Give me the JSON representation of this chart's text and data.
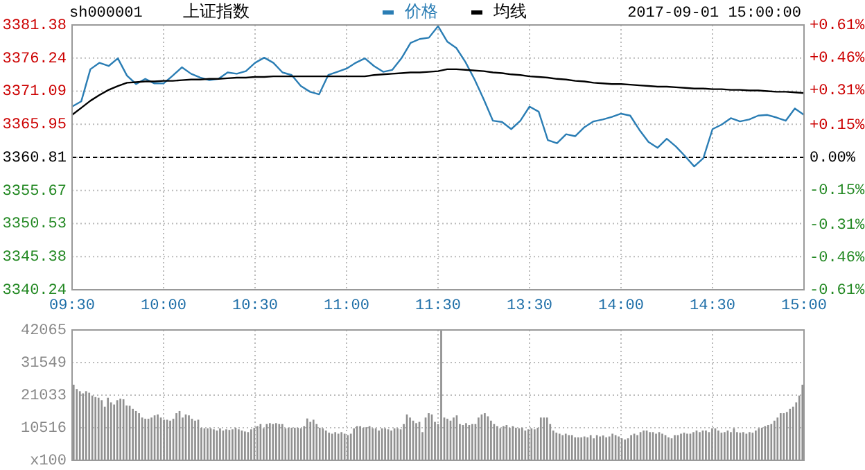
{
  "chart_data": [
    {
      "type": "line",
      "title": "上证指数",
      "subtitle": "sh000001",
      "annotations": [
        "2017-09-01 15:00:00"
      ],
      "legend": "top",
      "grid": true,
      "categories": [
        "09:30",
        null,
        null,
        null,
        null,
        null,
        null,
        null,
        null,
        null,
        "10:00",
        null,
        null,
        null,
        null,
        null,
        null,
        null,
        null,
        null,
        "10:30",
        null,
        null,
        null,
        null,
        null,
        null,
        null,
        null,
        null,
        "11:00",
        null,
        null,
        null,
        null,
        null,
        null,
        null,
        null,
        null,
        "11:30",
        null,
        null,
        null,
        null,
        null,
        null,
        null,
        null,
        null,
        "13:30",
        null,
        null,
        null,
        null,
        null,
        null,
        null,
        null,
        null,
        "14:00",
        null,
        null,
        null,
        null,
        null,
        null,
        null,
        null,
        null,
        "14:30",
        null,
        null,
        null,
        null,
        null,
        null,
        null,
        null,
        null,
        "15:00"
      ],
      "ylim": [
        3340.24,
        3381.38
      ],
      "yticks": [
        3340.24,
        3345.38,
        3350.53,
        3355.67,
        3360.81,
        3365.95,
        3371.09,
        3376.24,
        3381.38
      ],
      "y2lim": [
        -0.61,
        0.61
      ],
      "y2ticks": [
        {
          "value": -0.61,
          "label": "-0.61%"
        },
        {
          "value": -0.46,
          "label": "-0.46%"
        },
        {
          "value": -0.31,
          "label": "-0.31%"
        },
        {
          "value": -0.15,
          "label": "-0.15%"
        },
        {
          "value": 0,
          "label": "0.00%"
        },
        {
          "value": 0.15,
          "label": "+0.15%"
        },
        {
          "value": 0.31,
          "label": "+0.31%"
        },
        {
          "value": 0.46,
          "label": "+0.46%"
        },
        {
          "value": 0.61,
          "label": "+0.61%"
        }
      ],
      "ref_lines": [
        {
          "axis": "y",
          "value": 3360.81,
          "color": "#000000",
          "line_style": "dashed"
        }
      ],
      "series": [
        {
          "name": "价格",
          "color": "#2a7db4",
          "values": [
            3368.7,
            3369.5,
            3374.5,
            3375.5,
            3375.0,
            3376.2,
            3373.5,
            3372.2,
            3373.0,
            3372.3,
            3372.3,
            3373.5,
            3374.8,
            3373.8,
            3373.2,
            3372.8,
            3373.0,
            3374.0,
            3373.8,
            3374.2,
            3375.5,
            3376.3,
            3375.5,
            3374.0,
            3373.6,
            3371.9,
            3371.0,
            3370.6,
            3373.6,
            3374.1,
            3374.6,
            3375.5,
            3376.2,
            3375.0,
            3374.1,
            3374.4,
            3376.2,
            3378.6,
            3379.2,
            3379.4,
            3381.2,
            3378.8,
            3377.8,
            3375.6,
            3372.9,
            3369.8,
            3366.5,
            3366.3,
            3365.2,
            3366.5,
            3368.7,
            3367.9,
            3363.5,
            3363.0,
            3364.4,
            3364.1,
            3365.5,
            3366.4,
            3366.7,
            3367.1,
            3367.6,
            3367.3,
            3365.1,
            3363.2,
            3362.3,
            3363.7,
            3362.5,
            3361.0,
            3359.4,
            3360.7,
            3365.2,
            3365.9,
            3366.9,
            3366.4,
            3366.7,
            3367.3,
            3367.4,
            3367.0,
            3366.5,
            3368.4,
            3367.4
          ]
        },
        {
          "name": "均线",
          "color": "#000000",
          "values": [
            3367.4,
            3368.5,
            3369.6,
            3370.5,
            3371.3,
            3371.9,
            3372.4,
            3372.5,
            3372.6,
            3372.6,
            3372.7,
            3372.7,
            3372.8,
            3372.9,
            3372.9,
            3373.0,
            3373.0,
            3373.1,
            3373.2,
            3373.2,
            3373.3,
            3373.3,
            3373.4,
            3373.4,
            3373.4,
            3373.4,
            3373.4,
            3373.4,
            3373.4,
            3373.4,
            3373.4,
            3373.4,
            3373.4,
            3373.6,
            3373.7,
            3373.8,
            3373.9,
            3374.0,
            3374.0,
            3374.1,
            3374.2,
            3374.5,
            3374.5,
            3374.4,
            3374.3,
            3374.2,
            3374.0,
            3373.9,
            3373.7,
            3373.6,
            3373.4,
            3373.3,
            3373.2,
            3373.0,
            3372.9,
            3372.7,
            3372.6,
            3372.4,
            3372.3,
            3372.2,
            3372.2,
            3372.1,
            3372.0,
            3371.9,
            3371.8,
            3371.8,
            3371.7,
            3371.6,
            3371.5,
            3371.5,
            3371.4,
            3371.4,
            3371.3,
            3371.3,
            3371.2,
            3371.2,
            3371.1,
            3371.0,
            3371.0,
            3370.9,
            3370.8
          ]
        }
      ]
    },
    {
      "type": "bar",
      "grid": true,
      "color": "#909090",
      "ylim": [
        0,
        42065
      ],
      "yticks": [
        {
          "value": 0,
          "label": "x100"
        },
        10516,
        21033,
        31549,
        42065
      ],
      "categories": [
        null,
        null,
        null,
        null,
        null,
        null,
        null,
        null,
        null,
        null,
        null,
        null,
        null,
        null,
        null,
        null,
        null,
        null,
        null,
        null,
        null,
        null,
        null,
        null,
        null,
        null,
        null,
        null,
        null,
        null,
        null,
        null,
        null,
        null,
        null,
        null,
        null,
        null,
        null,
        null,
        null,
        null,
        null,
        null,
        null,
        null,
        null,
        null,
        null,
        null,
        null,
        null,
        null,
        null,
        null,
        null,
        null,
        null,
        null,
        null,
        null,
        null,
        null,
        null,
        null,
        null,
        null,
        null,
        null,
        null,
        null,
        null,
        null,
        null,
        null,
        null,
        null,
        null,
        null,
        null,
        null,
        null,
        null,
        null,
        null,
        null,
        null,
        null,
        null,
        null,
        null,
        null,
        null,
        null,
        null,
        null,
        null,
        null,
        null,
        null,
        null,
        null,
        null,
        null,
        null,
        null,
        null,
        null,
        null,
        null,
        null,
        null,
        null,
        null,
        null,
        null,
        null,
        null,
        null,
        null,
        null,
        null,
        null,
        null,
        null,
        null,
        null,
        null,
        null,
        null,
        null,
        null,
        null,
        null,
        null,
        null,
        null,
        null,
        null,
        null,
        null,
        null,
        null,
        null,
        null,
        null,
        null,
        null,
        null,
        null,
        null,
        null,
        null,
        null,
        null,
        null,
        null,
        null,
        null,
        null,
        null,
        null,
        null,
        null,
        null,
        null,
        null,
        null,
        null,
        null,
        null,
        null,
        null,
        null,
        null,
        null,
        null,
        null,
        null,
        null,
        null,
        null,
        null,
        null,
        null,
        null,
        null,
        null,
        null,
        null,
        null,
        null,
        null,
        null,
        null,
        null,
        null,
        null,
        null,
        null,
        null,
        null,
        null,
        null,
        null,
        null,
        null,
        null,
        null,
        null,
        null,
        null,
        null,
        null,
        null,
        null,
        null,
        null,
        null,
        null,
        null,
        null,
        null,
        null,
        null,
        null,
        null,
        null,
        null,
        null,
        null,
        null,
        null,
        null,
        null
      ],
      "values": [
        24400,
        23000,
        22300,
        21600,
        22300,
        21800,
        20900,
        20400,
        20200,
        19400,
        17300,
        20200,
        18700,
        18000,
        19400,
        19900,
        19700,
        17700,
        17600,
        16600,
        15900,
        15200,
        13800,
        13400,
        13400,
        13800,
        14500,
        14800,
        13800,
        13100,
        13100,
        12800,
        13400,
        15200,
        15900,
        13800,
        14800,
        14500,
        13400,
        12800,
        13100,
        10500,
        10300,
        10300,
        10300,
        10000,
        9600,
        10300,
        9600,
        10000,
        9800,
        10000,
        10500,
        10000,
        9600,
        9300,
        9100,
        10000,
        10500,
        11000,
        11700,
        10300,
        11700,
        12000,
        11700,
        12000,
        11700,
        11700,
        10300,
        10500,
        10500,
        10500,
        10500,
        10300,
        11000,
        13500,
        12400,
        13100,
        11700,
        10500,
        10300,
        9600,
        8900,
        8600,
        9100,
        8600,
        9100,
        8600,
        8100,
        8600,
        10300,
        11000,
        11000,
        10500,
        10700,
        11000,
        10300,
        10300,
        9600,
        10300,
        10300,
        10000,
        9600,
        10300,
        10300,
        10000,
        11700,
        14800,
        13800,
        12800,
        12000,
        12400,
        9100,
        13800,
        15200,
        14800,
        12400,
        11700,
        42000,
        13800,
        13400,
        12800,
        13800,
        14500,
        11700,
        11400,
        12000,
        11400,
        11700,
        11700,
        13800,
        14800,
        15200,
        14200,
        12800,
        11700,
        11000,
        10300,
        11000,
        11400,
        10500,
        11000,
        10500,
        10300,
        10500,
        9600,
        10000,
        10300,
        10000,
        10500,
        13800,
        13800,
        13800,
        11700,
        9600,
        8900,
        8600,
        8100,
        8600,
        8100,
        8100,
        7400,
        7400,
        7400,
        7700,
        7400,
        8100,
        7100,
        8100,
        7700,
        8000,
        7400,
        7700,
        8600,
        8100,
        7700,
        7100,
        6700,
        7100,
        8100,
        8600,
        8100,
        9100,
        9600,
        9600,
        9100,
        9100,
        8600,
        9100,
        8600,
        8100,
        7400,
        7100,
        8100,
        8100,
        8600,
        8900,
        8600,
        8600,
        9100,
        9600,
        9100,
        9600,
        9600,
        9100,
        10300,
        10300,
        9600,
        8900,
        9100,
        9600,
        9100,
        10300,
        9100,
        8900,
        9100,
        8600,
        9100,
        8900,
        9600,
        10300,
        10500,
        11000,
        11400,
        11700,
        12800,
        13800,
        15200,
        15200,
        15600,
        16600,
        17300,
        18700,
        20900,
        24400
      ]
    }
  ]
}
